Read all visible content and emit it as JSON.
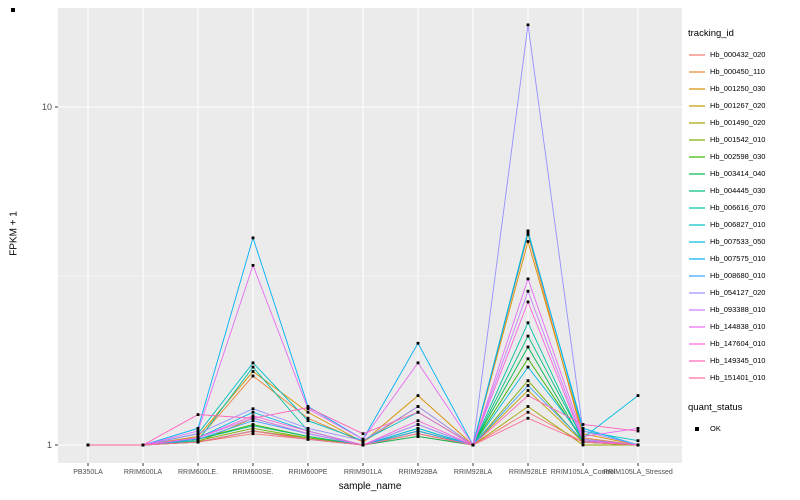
{
  "chart_data": {
    "type": "line",
    "title": "",
    "xlabel": "sample_name",
    "ylabel": "FPKM + 1",
    "y_scale": "log10",
    "y_ticks": [
      1,
      10
    ],
    "y_minor_breaks": [
      3.1623
    ],
    "ylim_log_top": 22,
    "grid": true,
    "legend_position": "right",
    "categories": [
      "PB350LA",
      "RRIM600LA",
      "RRIM600LE.",
      "RRIM600SE.",
      "RRIM600PE",
      "RRIM901LA",
      "RRIM928BA",
      "RRIM928LA",
      "RRIM928LE",
      "RRIM105LA_Control",
      "RRIM105LA_Stressed"
    ],
    "series": [
      {
        "name": "Hb_000432_020",
        "color": "#F8766D",
        "values": [
          1,
          1,
          1.02,
          1.08,
          1.04,
          1,
          1.06,
          1,
          1.25,
          1.02,
          1
        ]
      },
      {
        "name": "Hb_000450_110",
        "color": "#EA8331",
        "values": [
          1,
          1,
          1.04,
          1.6,
          1.2,
          1.02,
          1.3,
          1,
          4.2,
          1.05,
          1
        ]
      },
      {
        "name": "Hb_001250_030",
        "color": "#D89000",
        "values": [
          1,
          1,
          1.06,
          1.65,
          1.25,
          1.02,
          1.4,
          1,
          4.0,
          1.08,
          1
        ]
      },
      {
        "name": "Hb_001267_020",
        "color": "#C09B00",
        "values": [
          1,
          1,
          1.02,
          1.2,
          1.08,
          1,
          1.1,
          1,
          1.45,
          1.02,
          1
        ]
      },
      {
        "name": "Hb_001490_020",
        "color": "#A3A500",
        "values": [
          1,
          1,
          1.02,
          1.1,
          1.05,
          1,
          1.08,
          1,
          1.3,
          1,
          1
        ]
      },
      {
        "name": "Hb_001542_010",
        "color": "#7CAE00",
        "values": [
          1,
          1,
          1.03,
          1.12,
          1.05,
          1,
          1.08,
          1,
          1.55,
          1.02,
          1
        ]
      },
      {
        "name": "Hb_002598_030",
        "color": "#39B600",
        "values": [
          1,
          1,
          1.04,
          1.15,
          1.06,
          1,
          1.1,
          1,
          1.8,
          1.03,
          1
        ]
      },
      {
        "name": "Hb_003414_040",
        "color": "#00BB4E",
        "values": [
          1,
          1,
          1.02,
          1.1,
          1.04,
          1,
          1.06,
          1,
          1.95,
          1.02,
          1
        ]
      },
      {
        "name": "Hb_004445_030",
        "color": "#00BF7D",
        "values": [
          1,
          1,
          1.04,
          1.14,
          1.06,
          1,
          1.12,
          1,
          2.1,
          1.04,
          1
        ]
      },
      {
        "name": "Hb_006616_070",
        "color": "#00C1A3",
        "values": [
          1,
          1,
          1.03,
          1.7,
          1.1,
          1,
          1.15,
          1,
          2.3,
          1.03,
          1
        ]
      },
      {
        "name": "Hb_006827_010",
        "color": "#00BFC4",
        "values": [
          1,
          1,
          1.08,
          1.75,
          1.18,
          1.03,
          1.25,
          1,
          4.3,
          1.1,
          1.03
        ]
      },
      {
        "name": "Hb_007533_050",
        "color": "#00BAE0",
        "values": [
          1,
          1,
          1.05,
          1.25,
          1.1,
          1,
          1.12,
          1,
          1.7,
          1.05,
          1.4
        ]
      },
      {
        "name": "Hb_007575_010",
        "color": "#00B0F6",
        "values": [
          1,
          1,
          1.12,
          4.1,
          1.3,
          1.04,
          2.0,
          1,
          4.25,
          1.12,
          1
        ]
      },
      {
        "name": "Hb_008680_010",
        "color": "#35A2FF",
        "values": [
          1,
          1,
          1.04,
          1.18,
          1.08,
          1,
          1.1,
          1,
          1.5,
          1.03,
          1
        ]
      },
      {
        "name": "Hb_054127_020",
        "color": "#9590FF",
        "values": [
          1,
          1,
          1.08,
          1.28,
          1.12,
          1.03,
          1.3,
          1,
          17.5,
          1.1,
          1
        ]
      },
      {
        "name": "Hb_093388_010",
        "color": "#C77CFF",
        "values": [
          1,
          1,
          1.05,
          1.2,
          1.08,
          1,
          1.15,
          1,
          2.85,
          1.04,
          1
        ]
      },
      {
        "name": "Hb_144838_010",
        "color": "#E76BF3",
        "values": [
          1,
          1,
          1.1,
          3.4,
          1.28,
          1.04,
          1.75,
          1,
          3.1,
          1.06,
          1.12
        ]
      },
      {
        "name": "Hb_147604_010",
        "color": "#FA62DB",
        "values": [
          1,
          1,
          1.05,
          1.22,
          1.1,
          1,
          1.18,
          1,
          2.65,
          1.03,
          1
        ]
      },
      {
        "name": "Hb_149345_010",
        "color": "#FF62BC",
        "values": [
          1,
          1,
          1.23,
          1.2,
          1.29,
          1.08,
          1.25,
          1,
          1.4,
          1.15,
          1.1
        ]
      },
      {
        "name": "Hb_151401_010",
        "color": "#FF6A98",
        "values": [
          1,
          1,
          1.02,
          1.1,
          1.04,
          1,
          1.08,
          1,
          1.2,
          1.02,
          1
        ]
      }
    ]
  },
  "legend": {
    "tracking_title": "tracking_id",
    "quant_title": "quant_status",
    "quant_items": [
      {
        "label": "OK",
        "shape": "square",
        "color": "#000000"
      }
    ]
  },
  "colors": {
    "panel": "#EBEBEB",
    "grid_major": "#FFFFFF",
    "grid_minor": "#FFFFFF",
    "tick_text": "#4D4D4D",
    "tick_mark": "#333333",
    "point": "#000000"
  }
}
